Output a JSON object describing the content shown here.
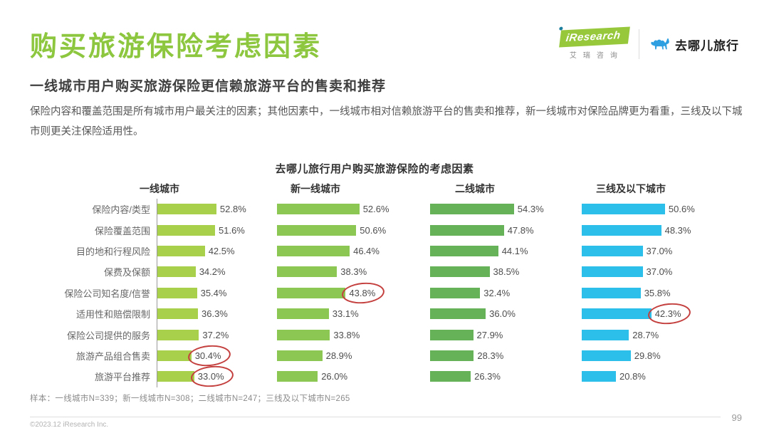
{
  "header": {
    "title": "购买旅游保险考虑因素",
    "subtitle": "一线城市用户购买旅游保险更信赖旅游平台的售卖和推荐",
    "iresearch_logo": "iResearch",
    "iresearch_cn": "艾瑞咨询",
    "partner_name": "去哪儿旅行",
    "brand_green": "#8dc63f",
    "camel_blue": "#2e9fe0"
  },
  "description": "保险内容和覆盖范围是所有城市用户最关注的因素；其他因素中，一线城市相对信赖旅游平台的售卖和推荐，新一线城市对保险品牌更为看重，三线及以下城市则更关注保险适用性。",
  "chart_data": {
    "type": "bar",
    "orientation": "horizontal",
    "title": "去哪儿旅行用户购买旅游保险的考虑因素",
    "value_suffix": "%",
    "xlim": [
      0,
      60
    ],
    "grid": false,
    "categories": [
      "保险内容/类型",
      "保险覆盖范围",
      "目的地和行程风险",
      "保费及保额",
      "保险公司知名度/信誉",
      "适用性和赔偿限制",
      "保险公司提供的服务",
      "旅游产品组合售卖",
      "旅游平台推荐"
    ],
    "series": [
      {
        "name": "一线城市",
        "color": "#a9d04a",
        "values": [
          52.8,
          51.6,
          42.5,
          34.2,
          35.4,
          36.3,
          37.2,
          30.4,
          33.0
        ],
        "circled_indices": [
          7,
          8
        ]
      },
      {
        "name": "新一线城市",
        "color": "#8cc653",
        "values": [
          52.6,
          50.6,
          46.4,
          38.3,
          43.8,
          33.1,
          33.8,
          28.9,
          26.0
        ],
        "circled_indices": [
          4
        ]
      },
      {
        "name": "二线城市",
        "color": "#65b259",
        "values": [
          54.3,
          47.8,
          44.1,
          38.5,
          32.4,
          36.0,
          27.9,
          28.3,
          26.3
        ],
        "circled_indices": []
      },
      {
        "name": "三线及以下城市",
        "color": "#2cbfe9",
        "values": [
          50.6,
          48.3,
          37.0,
          37.0,
          35.8,
          42.3,
          28.7,
          29.8,
          20.8
        ],
        "circled_indices": [
          5
        ]
      }
    ],
    "annotation_color": "#c4403f"
  },
  "footer": {
    "sample_note": "样本：一线城市N=339；新一线城市N=308；二线城市N=247；三线及以下城市N=265",
    "copyright": "©2023.12 iResearch Inc.",
    "page_number": "99"
  }
}
